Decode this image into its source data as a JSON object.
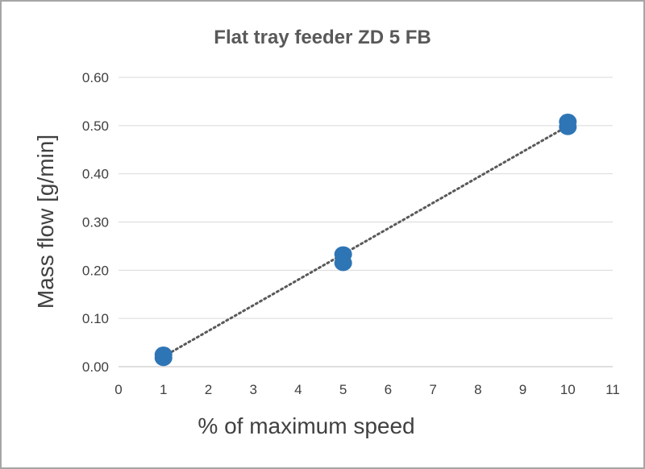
{
  "chart_data": {
    "type": "scatter",
    "title": "Flat tray feeder ZD 5 FB",
    "xlabel": "% of maximum speed",
    "ylabel": "Mass flow [g/min]",
    "xlim": [
      0,
      11
    ],
    "ylim": [
      0,
      0.6
    ],
    "x_ticks": [
      "0",
      "1",
      "2",
      "3",
      "4",
      "5",
      "6",
      "7",
      "8",
      "9",
      "10",
      "11"
    ],
    "y_ticks": [
      "0.00",
      "0.10",
      "0.20",
      "0.30",
      "0.40",
      "0.50",
      "0.60"
    ],
    "grid": "horizontal",
    "legend": "none",
    "series": [
      {
        "color": "#2e75b6",
        "points": [
          {
            "x": 1,
            "y": 0.025
          },
          {
            "x": 1,
            "y": 0.018
          },
          {
            "x": 5,
            "y": 0.233
          },
          {
            "x": 5,
            "y": 0.215
          },
          {
            "x": 10,
            "y": 0.508
          },
          {
            "x": 10,
            "y": 0.497
          }
        ]
      }
    ],
    "trendline": {
      "type": "linear",
      "style": "dotted",
      "color": "#595959",
      "from": {
        "x": 1,
        "y": 0.021
      },
      "to": {
        "x": 10,
        "y": 0.499
      }
    }
  }
}
